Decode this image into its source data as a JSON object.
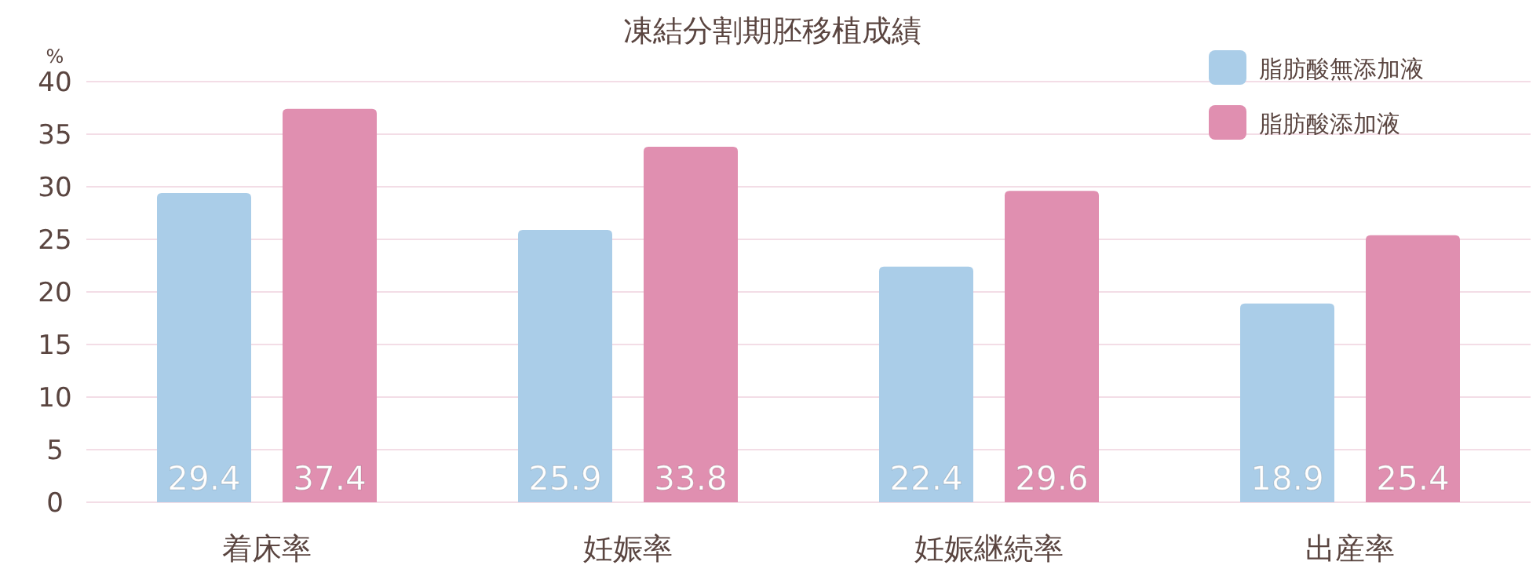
{
  "chart_data": {
    "type": "bar",
    "title": "凍結分割期胚移植成績",
    "ylabel": "%",
    "categories": [
      "着床率",
      "妊娠率",
      "妊娠継続率",
      "出産率"
    ],
    "series": [
      {
        "name": "脂肪酸無添加液",
        "color": "#aacde8",
        "values": [
          29.4,
          25.9,
          22.4,
          18.9
        ]
      },
      {
        "name": "脂肪酸添加液",
        "color": "#e08fb0",
        "values": [
          37.4,
          33.8,
          29.6,
          25.4
        ]
      }
    ],
    "ylim": [
      0,
      40
    ],
    "yticks": [
      0,
      5,
      10,
      15,
      20,
      25,
      30,
      35,
      40
    ],
    "grid": "y",
    "legend": "top right",
    "data_labels": true
  }
}
